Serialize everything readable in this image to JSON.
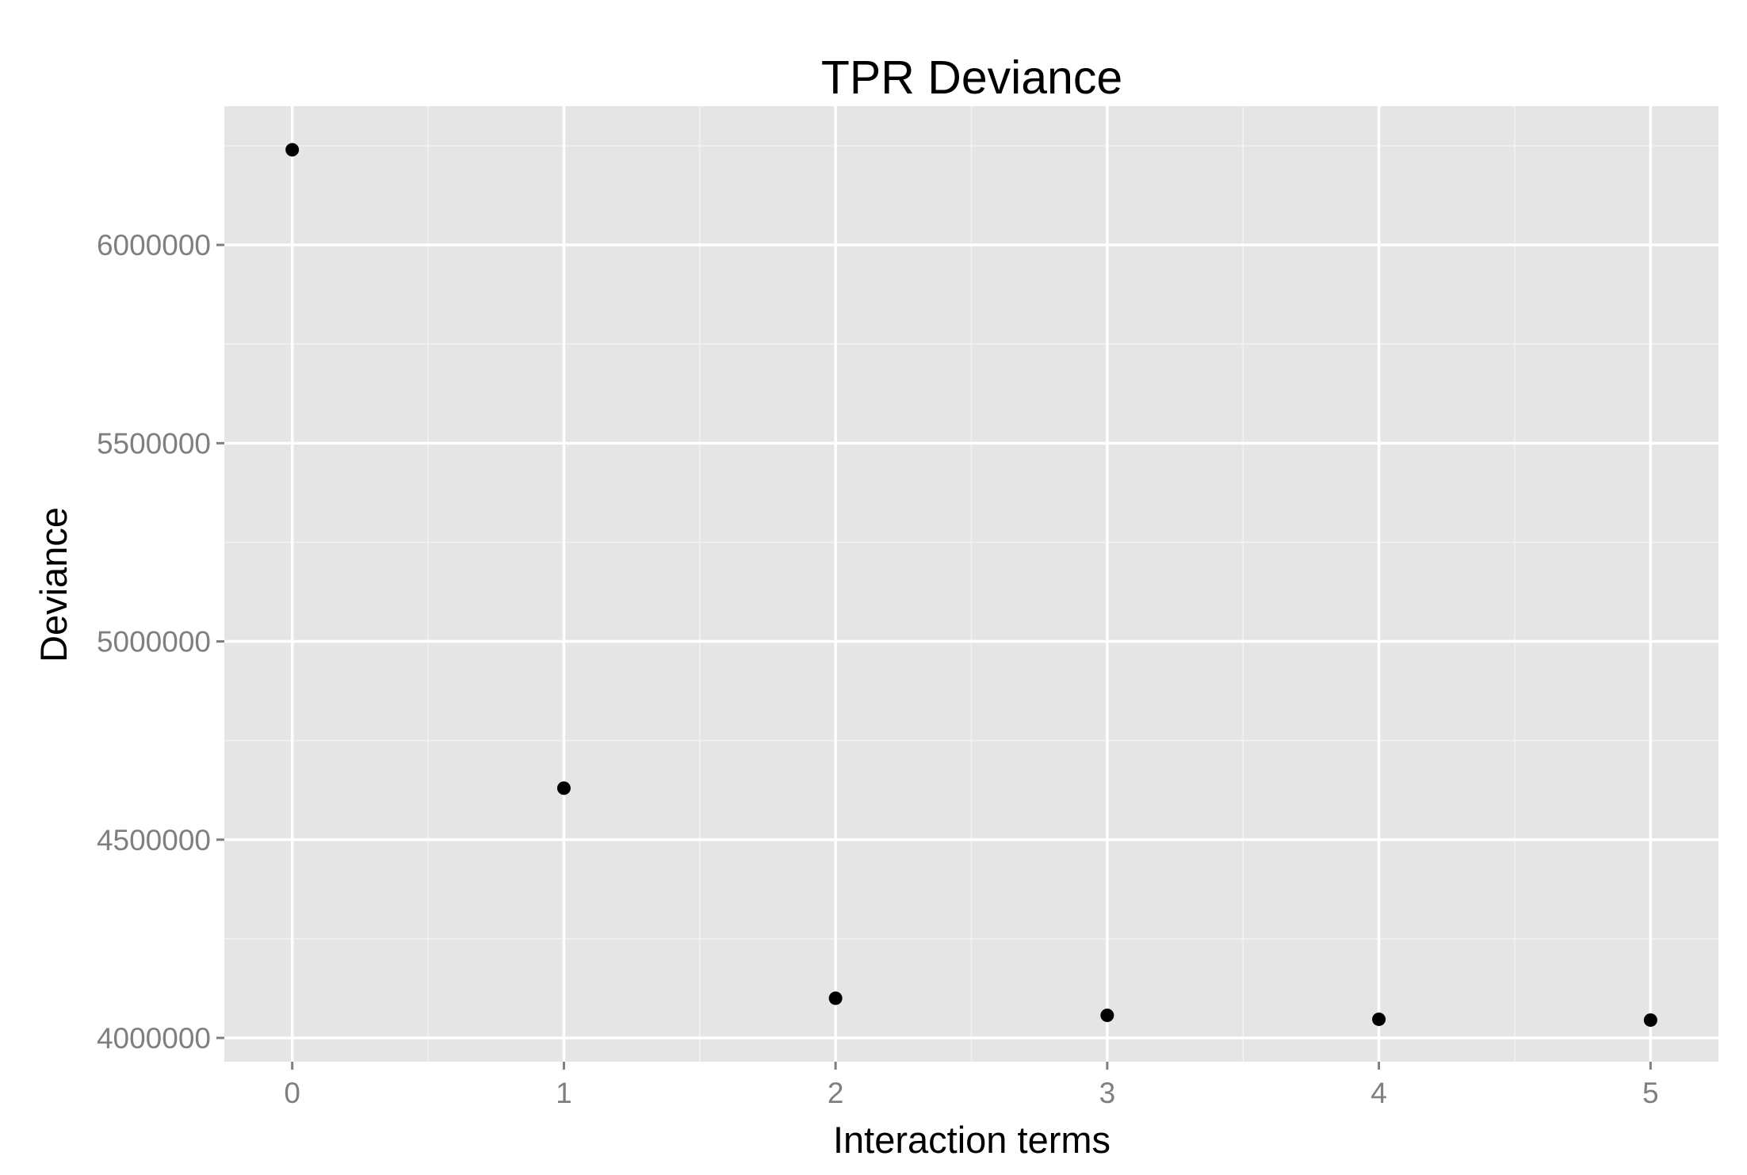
{
  "chart_data": {
    "type": "scatter",
    "title": "TPR Deviance",
    "xlabel": "Interaction terms",
    "ylabel": "Deviance",
    "x": [
      0,
      1,
      2,
      3,
      4,
      5
    ],
    "y": [
      6240000,
      4630000,
      4100000,
      4057000,
      4047000,
      4045000
    ],
    "xlim": [
      -0.25,
      5.25
    ],
    "ylim": [
      3940000,
      6350000
    ],
    "x_ticks": [
      0,
      1,
      2,
      3,
      4,
      5
    ],
    "x_tick_labels": [
      "0",
      "1",
      "2",
      "3",
      "4",
      "5"
    ],
    "y_ticks": [
      4000000,
      4500000,
      5000000,
      5500000,
      6000000
    ],
    "y_tick_labels": [
      "4000000",
      "4500000",
      "5000000",
      "5500000",
      "6000000"
    ],
    "grid": true,
    "legend": "none",
    "colors": {
      "panel_background": "#e5e5e5",
      "grid": "#ffffff",
      "point": "#000000",
      "tick_text": "#7f7f7f"
    }
  }
}
